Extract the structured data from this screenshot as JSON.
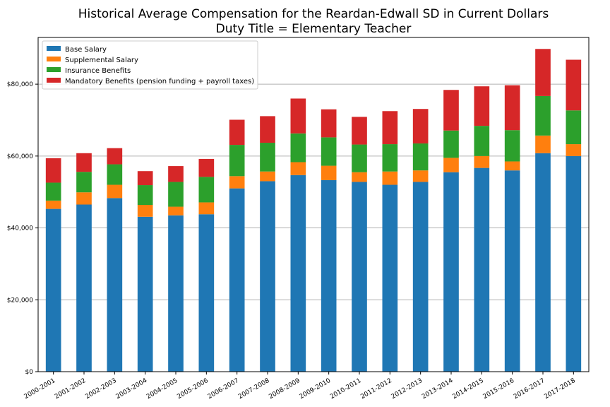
{
  "chart_data": {
    "type": "bar",
    "stacked": true,
    "title": [
      "Historical Average Compensation for the Reardan-Edwall SD in Current Dollars",
      "Duty Title = Elementary Teacher"
    ],
    "xlabel": "",
    "ylabel": "",
    "ylim": [
      0,
      93000
    ],
    "y_ticks": [
      0,
      20000,
      40000,
      60000,
      80000
    ],
    "y_tick_labels": [
      "$0",
      "$20,000",
      "$40,000",
      "$60,000",
      "$80,000"
    ],
    "grid": "horizontal",
    "legend_position": "top-left",
    "categories": [
      "2000-2001",
      "2001-2002",
      "2002-2003",
      "2003-2004",
      "2004-2005",
      "2005-2006",
      "2006-2007",
      "2007-2008",
      "2008-2009",
      "2009-2010",
      "2010-2011",
      "2011-2012",
      "2012-2013",
      "2013-2014",
      "2014-2015",
      "2015-2016",
      "2016-2017",
      "2017-2018"
    ],
    "series": [
      {
        "name": "Base Salary",
        "color": "#1f77b4",
        "values": [
          45300,
          46500,
          48300,
          43100,
          43500,
          43800,
          51000,
          53000,
          54700,
          53300,
          52800,
          52000,
          52800,
          55500,
          56700,
          56000,
          60800,
          60000
        ]
      },
      {
        "name": "Supplemental Salary",
        "color": "#ff7f0e",
        "values": [
          2300,
          3400,
          3700,
          3300,
          2400,
          3300,
          3400,
          2700,
          3600,
          4000,
          2700,
          3700,
          3200,
          4000,
          3300,
          2500,
          4900,
          3300
        ]
      },
      {
        "name": "Insurance Benefits",
        "color": "#2ca02c",
        "values": [
          5000,
          5700,
          5700,
          5500,
          6900,
          7100,
          8700,
          8000,
          8000,
          7900,
          7700,
          7600,
          7500,
          7600,
          8400,
          8700,
          11000,
          9400
        ]
      },
      {
        "name": "Mandatory Benefits (pension funding + payroll taxes)",
        "color": "#d62728",
        "values": [
          6800,
          5200,
          4500,
          3900,
          4400,
          5000,
          7000,
          7400,
          9700,
          7800,
          7700,
          9200,
          9600,
          11300,
          11000,
          12500,
          13100,
          14100
        ]
      }
    ]
  }
}
